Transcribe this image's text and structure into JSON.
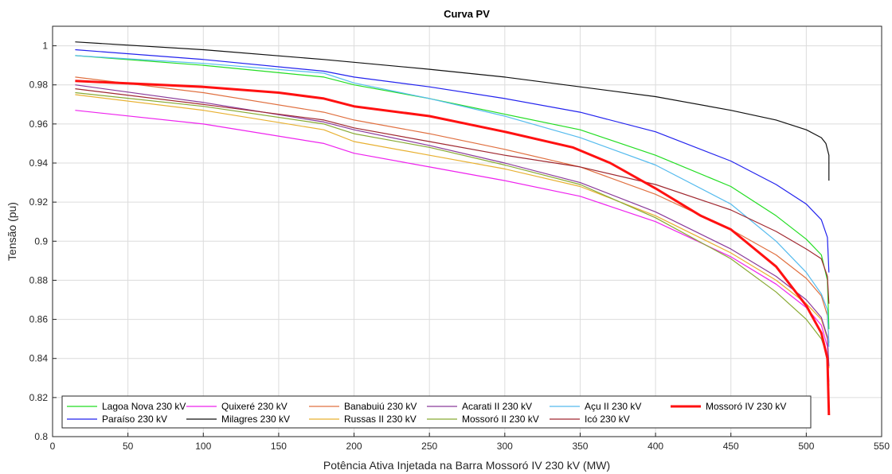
{
  "chart_data": {
    "type": "line",
    "title": "Curva PV",
    "xlabel": "Potência Ativa Injetada na Barra Mossoró IV 230 kV (MW)",
    "ylabel": "Tensão (pu)",
    "xlim": [
      0,
      550
    ],
    "ylim": [
      0.8,
      1.01
    ],
    "xticks": [
      0,
      50,
      100,
      150,
      200,
      250,
      300,
      350,
      400,
      450,
      500,
      550
    ],
    "yticks": [
      0.8,
      0.82,
      0.84,
      0.86,
      0.88,
      0.9,
      0.92,
      0.94,
      0.96,
      0.98,
      1
    ],
    "grid": true,
    "legend_position": "bottom-left",
    "series": [
      {
        "name": "Lagoa Nova 230 kV",
        "color": "#22dd22",
        "width": 1.2,
        "x": [
          15,
          100,
          180,
          200,
          250,
          300,
          350,
          400,
          450,
          480,
          500,
          510,
          514,
          515
        ],
        "y": [
          0.995,
          0.99,
          0.984,
          0.98,
          0.973,
          0.965,
          0.957,
          0.944,
          0.928,
          0.913,
          0.901,
          0.893,
          0.88,
          0.855
        ]
      },
      {
        "name": "Paraíso 230 kV",
        "color": "#2222ee",
        "width": 1.2,
        "x": [
          15,
          100,
          180,
          200,
          250,
          300,
          350,
          400,
          450,
          480,
          500,
          510,
          514,
          515
        ],
        "y": [
          0.998,
          0.993,
          0.987,
          0.984,
          0.979,
          0.973,
          0.966,
          0.956,
          0.941,
          0.929,
          0.919,
          0.911,
          0.902,
          0.884
        ]
      },
      {
        "name": "Quixeré 230 kV",
        "color": "#ee22ee",
        "width": 1.2,
        "x": [
          15,
          100,
          180,
          200,
          250,
          300,
          350,
          400,
          450,
          480,
          500,
          510,
          514,
          515
        ],
        "y": [
          0.967,
          0.96,
          0.95,
          0.945,
          0.938,
          0.931,
          0.923,
          0.91,
          0.892,
          0.878,
          0.866,
          0.857,
          0.846,
          0.828
        ]
      },
      {
        "name": "Milagres 230 kV",
        "color": "#111111",
        "width": 1.2,
        "x": [
          15,
          100,
          180,
          250,
          300,
          350,
          400,
          450,
          480,
          500,
          510,
          513,
          515,
          515
        ],
        "y": [
          1.002,
          0.998,
          0.993,
          0.988,
          0.984,
          0.979,
          0.974,
          0.967,
          0.962,
          0.957,
          0.953,
          0.95,
          0.944,
          0.931
        ]
      },
      {
        "name": "Banabuiú 230 kV",
        "color": "#e07040",
        "width": 1.2,
        "x": [
          15,
          100,
          180,
          200,
          250,
          300,
          350,
          400,
          450,
          480,
          500,
          510,
          514,
          515
        ],
        "y": [
          0.984,
          0.976,
          0.966,
          0.962,
          0.955,
          0.947,
          0.938,
          0.924,
          0.906,
          0.893,
          0.881,
          0.872,
          0.862,
          0.848
        ]
      },
      {
        "name": "Russas II 230 kV",
        "color": "#e8b030",
        "width": 1.2,
        "x": [
          15,
          100,
          180,
          200,
          250,
          300,
          350,
          400,
          450,
          480,
          500,
          510,
          514,
          515
        ],
        "y": [
          0.975,
          0.967,
          0.957,
          0.951,
          0.944,
          0.937,
          0.928,
          0.913,
          0.894,
          0.88,
          0.868,
          0.86,
          0.85,
          0.835
        ]
      },
      {
        "name": "Acarati II 230 kV",
        "color": "#8a3a9a",
        "width": 1.2,
        "x": [
          15,
          100,
          180,
          200,
          250,
          300,
          350,
          400,
          450,
          480,
          500,
          510,
          514,
          515
        ],
        "y": [
          0.98,
          0.971,
          0.961,
          0.957,
          0.949,
          0.94,
          0.93,
          0.915,
          0.896,
          0.882,
          0.87,
          0.861,
          0.851,
          0.836
        ]
      },
      {
        "name": "Mossoró II 230 kV",
        "color": "#88aa33",
        "width": 1.2,
        "x": [
          15,
          100,
          180,
          200,
          250,
          300,
          350,
          400,
          450,
          480,
          500,
          510,
          514,
          515
        ],
        "y": [
          0.976,
          0.969,
          0.96,
          0.955,
          0.948,
          0.939,
          0.929,
          0.912,
          0.891,
          0.874,
          0.86,
          0.85,
          0.841,
          0.826
        ]
      },
      {
        "name": "Açu II 230 kV",
        "color": "#55bbee",
        "width": 1.2,
        "x": [
          15,
          100,
          180,
          200,
          250,
          300,
          350,
          400,
          450,
          480,
          500,
          510,
          514,
          515
        ],
        "y": [
          0.995,
          0.991,
          0.986,
          0.981,
          0.973,
          0.964,
          0.953,
          0.939,
          0.919,
          0.9,
          0.884,
          0.873,
          0.865,
          0.846
        ]
      },
      {
        "name": "Icó 230 kV",
        "color": "#a02830",
        "width": 1.2,
        "x": [
          15,
          100,
          180,
          200,
          250,
          300,
          350,
          400,
          450,
          480,
          500,
          510,
          514,
          515
        ],
        "y": [
          0.978,
          0.97,
          0.962,
          0.958,
          0.951,
          0.944,
          0.938,
          0.929,
          0.916,
          0.905,
          0.896,
          0.891,
          0.882,
          0.868
        ]
      },
      {
        "name": "Mossoró IV 230 kV",
        "color": "#ff1111",
        "width": 3,
        "x": [
          15,
          100,
          150,
          180,
          200,
          250,
          300,
          345,
          370,
          400,
          430,
          450,
          480,
          500,
          510,
          514,
          515
        ],
        "y": [
          0.982,
          0.979,
          0.976,
          0.973,
          0.969,
          0.964,
          0.956,
          0.948,
          0.94,
          0.927,
          0.913,
          0.906,
          0.887,
          0.867,
          0.853,
          0.84,
          0.811
        ]
      }
    ]
  }
}
